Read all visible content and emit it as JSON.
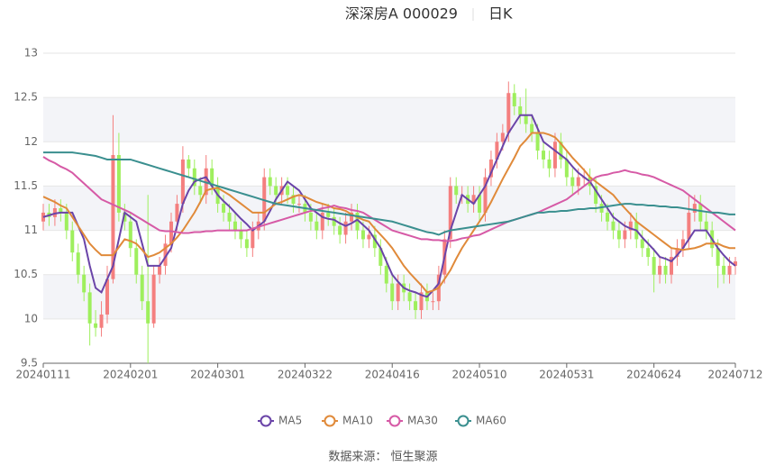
{
  "chart_data": {
    "type": "candlestick",
    "title": "深深房A 000029",
    "period": "日K",
    "source": "数据来源： 恒生聚源",
    "categories": [
      "20240111",
      null,
      null,
      null,
      null,
      null,
      null,
      null,
      null,
      null,
      null,
      null,
      null,
      null,
      null,
      "20240201",
      null,
      null,
      null,
      null,
      null,
      null,
      null,
      null,
      null,
      null,
      null,
      null,
      null,
      null,
      "20240301",
      null,
      null,
      null,
      null,
      null,
      null,
      null,
      null,
      null,
      null,
      null,
      null,
      null,
      null,
      "20240322",
      null,
      null,
      null,
      null,
      null,
      null,
      null,
      null,
      null,
      null,
      null,
      null,
      null,
      null,
      "20240416",
      null,
      null,
      null,
      null,
      null,
      null,
      null,
      null,
      null,
      null,
      null,
      null,
      null,
      null,
      "20240510",
      null,
      null,
      null,
      null,
      null,
      null,
      null,
      null,
      null,
      null,
      null,
      null,
      null,
      null,
      "20240531",
      null,
      null,
      null,
      null,
      null,
      null,
      null,
      null,
      null,
      null,
      null,
      null,
      null,
      null,
      "20240624",
      null,
      null,
      null,
      null,
      null,
      null,
      null,
      null,
      null,
      null,
      null,
      null,
      null,
      "20240712"
    ],
    "open": [
      11.1,
      11.2,
      11.15,
      11.25,
      11.2,
      11.0,
      10.75,
      10.5,
      10.3,
      9.95,
      9.9,
      10.05,
      10.45,
      11.85,
      11.2,
      11.1,
      10.8,
      10.5,
      10.2,
      9.95,
      10.5,
      10.6,
      10.85,
      11.1,
      11.3,
      11.8,
      11.7,
      11.5,
      11.4,
      11.7,
      11.5,
      11.3,
      11.2,
      11.1,
      11.0,
      10.9,
      10.8,
      11.0,
      11.1,
      11.6,
      11.5,
      11.4,
      11.5,
      11.4,
      11.3,
      11.3,
      11.2,
      11.1,
      11.0,
      11.2,
      11.15,
      11.05,
      10.95,
      11.1,
      11.2,
      11.0,
      10.9,
      10.95,
      10.8,
      10.6,
      10.4,
      10.2,
      10.4,
      10.3,
      10.2,
      10.1,
      10.3,
      10.2,
      10.2,
      10.5,
      10.9,
      11.5,
      11.4,
      11.4,
      11.3,
      11.4,
      11.2,
      11.6,
      11.8,
      12.0,
      12.1,
      12.55,
      12.4,
      12.3,
      12.2,
      12.1,
      11.9,
      11.8,
      11.7,
      12.0,
      11.8,
      11.6,
      11.5,
      11.6,
      11.6,
      11.5,
      11.3,
      11.2,
      11.1,
      11.0,
      10.9,
      11.0,
      11.1,
      10.9,
      10.8,
      10.7,
      10.5,
      10.6,
      10.5,
      10.7,
      10.8,
      10.9,
      11.2,
      11.3,
      11.1,
      11.0,
      10.8,
      10.6,
      10.5,
      10.6
    ],
    "high": [
      11.3,
      11.3,
      11.35,
      11.35,
      11.3,
      11.1,
      10.85,
      10.6,
      10.4,
      10.1,
      10.2,
      10.6,
      12.3,
      12.1,
      11.3,
      11.2,
      10.9,
      10.6,
      11.4,
      10.6,
      10.7,
      10.95,
      11.2,
      11.4,
      11.95,
      11.85,
      11.8,
      11.6,
      11.85,
      11.8,
      11.6,
      11.4,
      11.3,
      11.2,
      11.1,
      11.0,
      11.1,
      11.2,
      11.7,
      11.7,
      11.6,
      11.6,
      11.6,
      11.5,
      11.4,
      11.4,
      11.3,
      11.2,
      11.3,
      11.3,
      11.25,
      11.15,
      11.2,
      11.3,
      11.3,
      11.1,
      11.05,
      11.05,
      10.9,
      10.7,
      10.5,
      10.5,
      10.5,
      10.4,
      10.3,
      10.4,
      10.4,
      10.3,
      10.6,
      11.0,
      11.6,
      11.6,
      11.5,
      11.5,
      11.5,
      11.5,
      11.7,
      11.9,
      12.1,
      12.2,
      12.68,
      12.65,
      12.5,
      12.6,
      12.3,
      12.2,
      12.0,
      11.9,
      12.1,
      12.1,
      11.9,
      11.7,
      11.7,
      11.7,
      11.7,
      11.6,
      11.4,
      11.3,
      11.2,
      11.1,
      11.1,
      11.2,
      11.2,
      11.0,
      10.9,
      10.8,
      10.7,
      10.7,
      10.8,
      10.9,
      11.0,
      11.4,
      11.4,
      11.4,
      11.2,
      11.1,
      10.9,
      10.7,
      10.7,
      10.7
    ],
    "low": [
      11.0,
      11.05,
      11.05,
      11.1,
      10.9,
      10.65,
      10.4,
      10.2,
      9.7,
      9.8,
      9.8,
      9.95,
      10.4,
      11.1,
      11.0,
      10.7,
      10.4,
      10.1,
      9.5,
      9.9,
      10.4,
      10.5,
      10.75,
      11.0,
      11.2,
      11.6,
      11.4,
      11.3,
      11.3,
      11.4,
      11.2,
      11.1,
      11.0,
      10.9,
      10.8,
      10.7,
      10.7,
      10.9,
      11.0,
      11.4,
      11.3,
      11.3,
      11.3,
      11.2,
      11.2,
      11.1,
      11.0,
      10.9,
      10.9,
      11.05,
      10.95,
      10.85,
      10.85,
      11.0,
      10.9,
      10.8,
      10.8,
      10.7,
      10.5,
      10.3,
      10.1,
      10.1,
      10.2,
      10.1,
      10.0,
      10.0,
      10.1,
      10.1,
      10.1,
      10.4,
      10.8,
      11.3,
      11.3,
      11.2,
      11.2,
      11.1,
      11.1,
      11.5,
      11.7,
      11.9,
      12.0,
      12.3,
      12.2,
      12.1,
      12.0,
      11.8,
      11.7,
      11.6,
      11.6,
      11.7,
      11.5,
      11.4,
      11.4,
      11.5,
      11.4,
      11.2,
      11.1,
      11.0,
      10.9,
      10.8,
      10.8,
      10.9,
      10.8,
      10.7,
      10.6,
      10.3,
      10.4,
      10.4,
      10.4,
      10.6,
      10.7,
      10.8,
      11.1,
      11.0,
      10.9,
      10.7,
      10.35,
      10.4,
      10.4,
      10.5
    ],
    "close": [
      11.2,
      11.15,
      11.25,
      11.2,
      11.0,
      10.75,
      10.5,
      10.3,
      9.95,
      9.9,
      10.05,
      10.45,
      11.85,
      11.2,
      11.1,
      10.8,
      10.5,
      10.2,
      9.95,
      10.5,
      10.6,
      10.85,
      11.1,
      11.3,
      11.8,
      11.7,
      11.5,
      11.4,
      11.7,
      11.5,
      11.3,
      11.2,
      11.1,
      11.0,
      10.9,
      10.8,
      11.0,
      11.1,
      11.6,
      11.5,
      11.4,
      11.5,
      11.4,
      11.3,
      11.3,
      11.2,
      11.1,
      11.0,
      11.2,
      11.15,
      11.05,
      10.95,
      11.1,
      11.2,
      11.0,
      10.9,
      10.95,
      10.8,
      10.6,
      10.4,
      10.2,
      10.4,
      10.3,
      10.2,
      10.1,
      10.3,
      10.2,
      10.2,
      10.5,
      10.9,
      11.5,
      11.4,
      11.4,
      11.3,
      11.4,
      11.2,
      11.6,
      11.8,
      12.0,
      12.1,
      12.55,
      12.4,
      12.3,
      12.2,
      12.1,
      11.9,
      11.8,
      11.7,
      12.0,
      11.8,
      11.6,
      11.5,
      11.6,
      11.6,
      11.5,
      11.3,
      11.2,
      11.1,
      11.0,
      10.9,
      11.0,
      11.1,
      10.9,
      10.8,
      10.7,
      10.5,
      10.6,
      10.5,
      10.7,
      10.8,
      10.9,
      11.2,
      11.3,
      11.1,
      11.0,
      10.8,
      10.6,
      10.5,
      10.6,
      10.65
    ],
    "up_color": "#f47f7f",
    "down_color": "#9eef5d",
    "series": [
      {
        "name": "MA5",
        "color": "#6a44a8",
        "values": [
          11.15,
          11.17,
          11.19,
          11.2,
          11.2,
          11.2,
          11.05,
          10.9,
          10.6,
          10.35,
          10.3,
          10.45,
          10.6,
          10.9,
          11.2,
          11.15,
          11.1,
          10.85,
          10.6,
          10.6,
          10.6,
          10.7,
          10.8,
          11.05,
          11.3,
          11.45,
          11.55,
          11.58,
          11.6,
          11.5,
          11.4,
          11.33,
          11.27,
          11.2,
          11.13,
          11.07,
          11.0,
          11.05,
          11.1,
          11.22,
          11.35,
          11.45,
          11.55,
          11.5,
          11.45,
          11.35,
          11.25,
          11.2,
          11.15,
          11.13,
          11.12,
          11.08,
          11.05,
          11.08,
          11.12,
          11.06,
          11.0,
          10.9,
          10.8,
          10.65,
          10.5,
          10.42,
          10.35,
          10.32,
          10.3,
          10.27,
          10.25,
          10.32,
          10.4,
          10.7,
          11.0,
          11.2,
          11.4,
          11.35,
          11.3,
          11.4,
          11.5,
          11.65,
          11.8,
          11.95,
          12.1,
          12.2,
          12.3,
          12.3,
          12.3,
          12.15,
          12.0,
          11.95,
          11.9,
          11.85,
          11.8,
          11.72,
          11.65,
          11.6,
          11.55,
          11.45,
          11.35,
          11.25,
          11.15,
          11.1,
          11.05,
          11.02,
          11.0,
          10.92,
          10.85,
          10.78,
          10.7,
          10.68,
          10.65,
          10.72,
          10.8,
          10.9,
          11.0,
          11.0,
          11.0,
          10.9,
          10.8,
          10.72,
          10.65,
          10.6
        ]
      },
      {
        "name": "MA10",
        "color": "#e08a3a",
        "values": [
          11.38,
          11.35,
          11.32,
          11.28,
          11.25,
          11.15,
          11.05,
          10.95,
          10.85,
          10.78,
          10.72,
          10.72,
          10.72,
          10.81,
          10.9,
          10.88,
          10.85,
          10.78,
          10.7,
          10.72,
          10.75,
          10.8,
          10.85,
          10.92,
          11.0,
          11.1,
          11.2,
          11.32,
          11.45,
          11.47,
          11.48,
          11.44,
          11.4,
          11.35,
          11.3,
          11.25,
          11.2,
          11.2,
          11.2,
          11.25,
          11.3,
          11.32,
          11.35,
          11.38,
          11.4,
          11.38,
          11.35,
          11.32,
          11.3,
          11.28,
          11.25,
          11.24,
          11.22,
          11.18,
          11.15,
          11.12,
          11.1,
          11.02,
          10.95,
          10.88,
          10.8,
          10.7,
          10.6,
          10.52,
          10.45,
          10.38,
          10.3,
          10.32,
          10.35,
          10.45,
          10.55,
          10.68,
          10.8,
          10.9,
          11.0,
          11.1,
          11.2,
          11.32,
          11.45,
          11.58,
          11.7,
          11.82,
          11.95,
          12.02,
          12.1,
          12.1,
          12.1,
          12.08,
          12.05,
          11.98,
          11.9,
          11.82,
          11.75,
          11.68,
          11.6,
          11.55,
          11.5,
          11.45,
          11.4,
          11.32,
          11.25,
          11.18,
          11.1,
          11.05,
          11.0,
          10.95,
          10.9,
          10.85,
          10.8,
          10.79,
          10.78,
          10.79,
          10.8,
          10.82,
          10.85,
          10.85,
          10.85,
          10.82,
          10.8,
          10.8
        ]
      },
      {
        "name": "MA30",
        "color": "#d65aa6",
        "values": [
          11.83,
          11.79,
          11.76,
          11.72,
          11.69,
          11.65,
          11.59,
          11.53,
          11.47,
          11.41,
          11.35,
          11.32,
          11.29,
          11.26,
          11.23,
          11.2,
          11.16,
          11.12,
          11.08,
          11.04,
          11.0,
          10.99,
          10.99,
          10.98,
          10.97,
          10.97,
          10.98,
          10.98,
          10.99,
          10.99,
          11.0,
          11.0,
          11.0,
          11.0,
          11.0,
          11.0,
          11.02,
          11.04,
          11.06,
          11.08,
          11.1,
          11.12,
          11.14,
          11.16,
          11.18,
          11.2,
          11.22,
          11.23,
          11.25,
          11.26,
          11.28,
          11.26,
          11.25,
          11.23,
          11.22,
          11.2,
          11.16,
          11.12,
          11.08,
          11.04,
          11.0,
          10.98,
          10.96,
          10.94,
          10.92,
          10.9,
          10.9,
          10.89,
          10.89,
          10.88,
          10.88,
          10.89,
          10.91,
          10.92,
          10.94,
          10.95,
          10.98,
          11.01,
          11.04,
          11.07,
          11.1,
          11.12,
          11.14,
          11.16,
          11.18,
          11.2,
          11.23,
          11.26,
          11.29,
          11.32,
          11.35,
          11.4,
          11.45,
          11.5,
          11.55,
          11.6,
          11.62,
          11.63,
          11.65,
          11.66,
          11.68,
          11.66,
          11.65,
          11.63,
          11.62,
          11.6,
          11.57,
          11.54,
          11.51,
          11.48,
          11.45,
          11.4,
          11.35,
          11.3,
          11.25,
          11.2,
          11.15,
          11.1,
          11.05,
          11.0
        ]
      },
      {
        "name": "MA60",
        "color": "#3a8f8f",
        "values": [
          11.88,
          11.88,
          11.88,
          11.88,
          11.88,
          11.88,
          11.87,
          11.86,
          11.85,
          11.84,
          11.82,
          11.8,
          11.8,
          11.8,
          11.8,
          11.8,
          11.78,
          11.76,
          11.74,
          11.72,
          11.7,
          11.68,
          11.66,
          11.64,
          11.62,
          11.6,
          11.58,
          11.56,
          11.54,
          11.52,
          11.5,
          11.48,
          11.46,
          11.44,
          11.42,
          11.4,
          11.38,
          11.36,
          11.34,
          11.32,
          11.3,
          11.29,
          11.28,
          11.27,
          11.26,
          11.25,
          11.24,
          11.23,
          11.22,
          11.21,
          11.2,
          11.19,
          11.18,
          11.17,
          11.16,
          11.15,
          11.14,
          11.13,
          11.12,
          11.11,
          11.1,
          11.08,
          11.06,
          11.04,
          11.02,
          11.0,
          10.98,
          10.97,
          10.95,
          10.98,
          11.0,
          11.01,
          11.02,
          11.03,
          11.04,
          11.05,
          11.06,
          11.07,
          11.08,
          11.09,
          11.1,
          11.12,
          11.14,
          11.16,
          11.18,
          11.2,
          11.2,
          11.21,
          11.21,
          11.22,
          11.22,
          11.23,
          11.24,
          11.24,
          11.25,
          11.25,
          11.26,
          11.27,
          11.28,
          11.29,
          11.3,
          11.3,
          11.29,
          11.29,
          11.28,
          11.28,
          11.27,
          11.27,
          11.26,
          11.26,
          11.25,
          11.24,
          11.23,
          11.22,
          11.21,
          11.2,
          11.2,
          11.19,
          11.18,
          11.18
        ]
      }
    ],
    "ylim": [
      9.5,
      13
    ],
    "yticks": [
      9.5,
      10,
      10.5,
      11,
      11.5,
      12,
      12.5,
      13
    ],
    "grid": true
  }
}
